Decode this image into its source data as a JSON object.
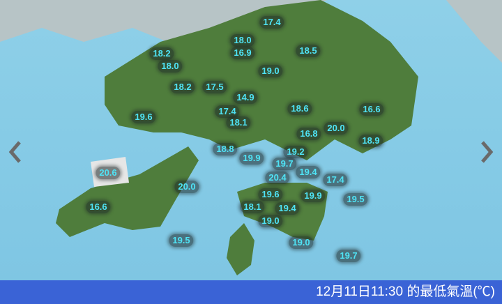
{
  "footer": {
    "caption": "12月11日11:30 的最低氣溫(℃)"
  },
  "navigation": {
    "prev_icon": "chevron-left-icon",
    "next_icon": "chevron-right-icon"
  },
  "colors": {
    "label_text": "#4fe3f5",
    "footer_bg": "#3a63d6",
    "sea": "#86cbe6",
    "land": "#4a7a3a"
  },
  "temperature_unit": "℃",
  "stations": [
    {
      "value": "17.4"
    },
    {
      "value": "18.0"
    },
    {
      "value": "18.2"
    },
    {
      "value": "16.9"
    },
    {
      "value": "18.0"
    },
    {
      "value": "18.5"
    },
    {
      "value": "19.0"
    },
    {
      "value": "18.2"
    },
    {
      "value": "17.5"
    },
    {
      "value": "14.9"
    },
    {
      "value": "18.6"
    },
    {
      "value": "16.6"
    },
    {
      "value": "19.6"
    },
    {
      "value": "17.4"
    },
    {
      "value": "18.1"
    },
    {
      "value": "20.0"
    },
    {
      "value": "16.8"
    },
    {
      "value": "18.9"
    },
    {
      "value": "18.8"
    },
    {
      "value": "19.9"
    },
    {
      "value": "19.2"
    },
    {
      "value": "19.7"
    },
    {
      "value": "20.4"
    },
    {
      "value": "19.4"
    },
    {
      "value": "17.4"
    },
    {
      "value": "20.6"
    },
    {
      "value": "20.0"
    },
    {
      "value": "19.6"
    },
    {
      "value": "19.9"
    },
    {
      "value": "19.5"
    },
    {
      "value": "16.6"
    },
    {
      "value": "18.1"
    },
    {
      "value": "19.4"
    },
    {
      "value": "19.0"
    },
    {
      "value": "19.5"
    },
    {
      "value": "19.0"
    },
    {
      "value": "19.7"
    }
  ]
}
